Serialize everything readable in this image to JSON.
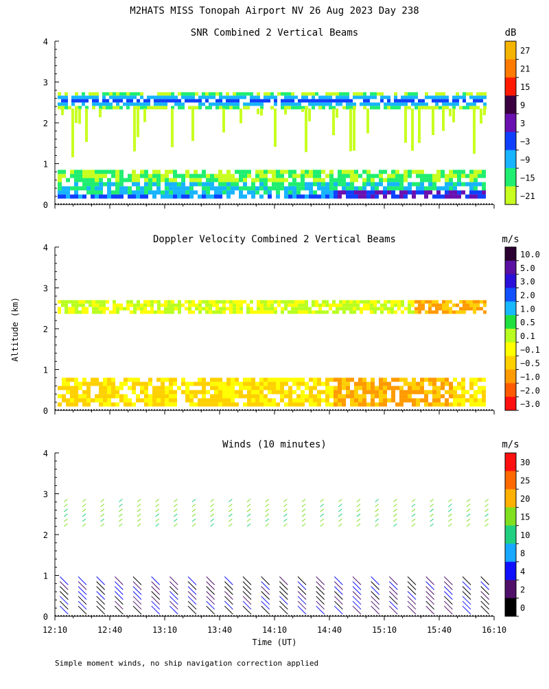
{
  "page": {
    "title": "M2HATS MISS Tonopah Airport NV  26 Aug 2023 Day 238",
    "ylabel": "Altitude (km)",
    "xlabel": "Time (UT)",
    "footnote": "Simple moment winds, no ship navigation correction applied"
  },
  "chart_data": [
    {
      "type": "heatmap",
      "title": "SNR Combined 2 Vertical Beams",
      "units": "dB",
      "ylim": [
        0,
        4
      ],
      "yticks": [
        "0",
        "1",
        "2",
        "3",
        "4"
      ],
      "xlim": [
        0,
        240
      ],
      "colorbar": {
        "labels": [
          "27",
          "21",
          "15",
          "9",
          "3",
          "−3",
          "−9",
          "−15",
          "−21"
        ],
        "colors": [
          "#f5b400",
          "#ff7a00",
          "#ff1a00",
          "#3a0040",
          "#6a10b0",
          "#1040ff",
          "#18b4ff",
          "#20ee70",
          "#c8ff20"
        ]
      }
    },
    {
      "type": "heatmap",
      "title": "Doppler Velocity Combined 2 Vertical Beams",
      "units": "m/s",
      "ylim": [
        0,
        4
      ],
      "yticks": [
        "0",
        "1",
        "2",
        "3",
        "4"
      ],
      "xlim": [
        0,
        240
      ],
      "colorbar": {
        "labels": [
          "10.0",
          "5.0",
          "3.0",
          "2.0",
          "1.0",
          "0.5",
          "0.1",
          "−0.1",
          "−0.5",
          "−1.0",
          "−2.0",
          "−3.0"
        ],
        "colors": [
          "#2a0030",
          "#5a10a0",
          "#2a10d8",
          "#1050ff",
          "#18b8ff",
          "#20e040",
          "#b8ff20",
          "#ffff00",
          "#ffd000",
          "#ff9a00",
          "#ff5a00",
          "#ff1010"
        ]
      }
    },
    {
      "type": "scatter",
      "title": "Winds (10 minutes)",
      "units": "m/s",
      "ylim": [
        0,
        4
      ],
      "yticks": [
        "0",
        "1",
        "2",
        "3",
        "4"
      ],
      "xlim": [
        0,
        240
      ],
      "xticks": [
        "12:10",
        "12:40",
        "13:10",
        "13:40",
        "14:10",
        "14:40",
        "15:10",
        "15:40",
        "16:10"
      ],
      "colorbar": {
        "labels": [
          "30",
          "25",
          "20",
          "15",
          "10",
          "8",
          "4",
          "2",
          "0"
        ],
        "colors": [
          "#ff1010",
          "#ff6a00",
          "#ffb000",
          "#80e020",
          "#20d080",
          "#18a8ff",
          "#1010ff",
          "#50106a",
          "#000000"
        ]
      }
    }
  ]
}
